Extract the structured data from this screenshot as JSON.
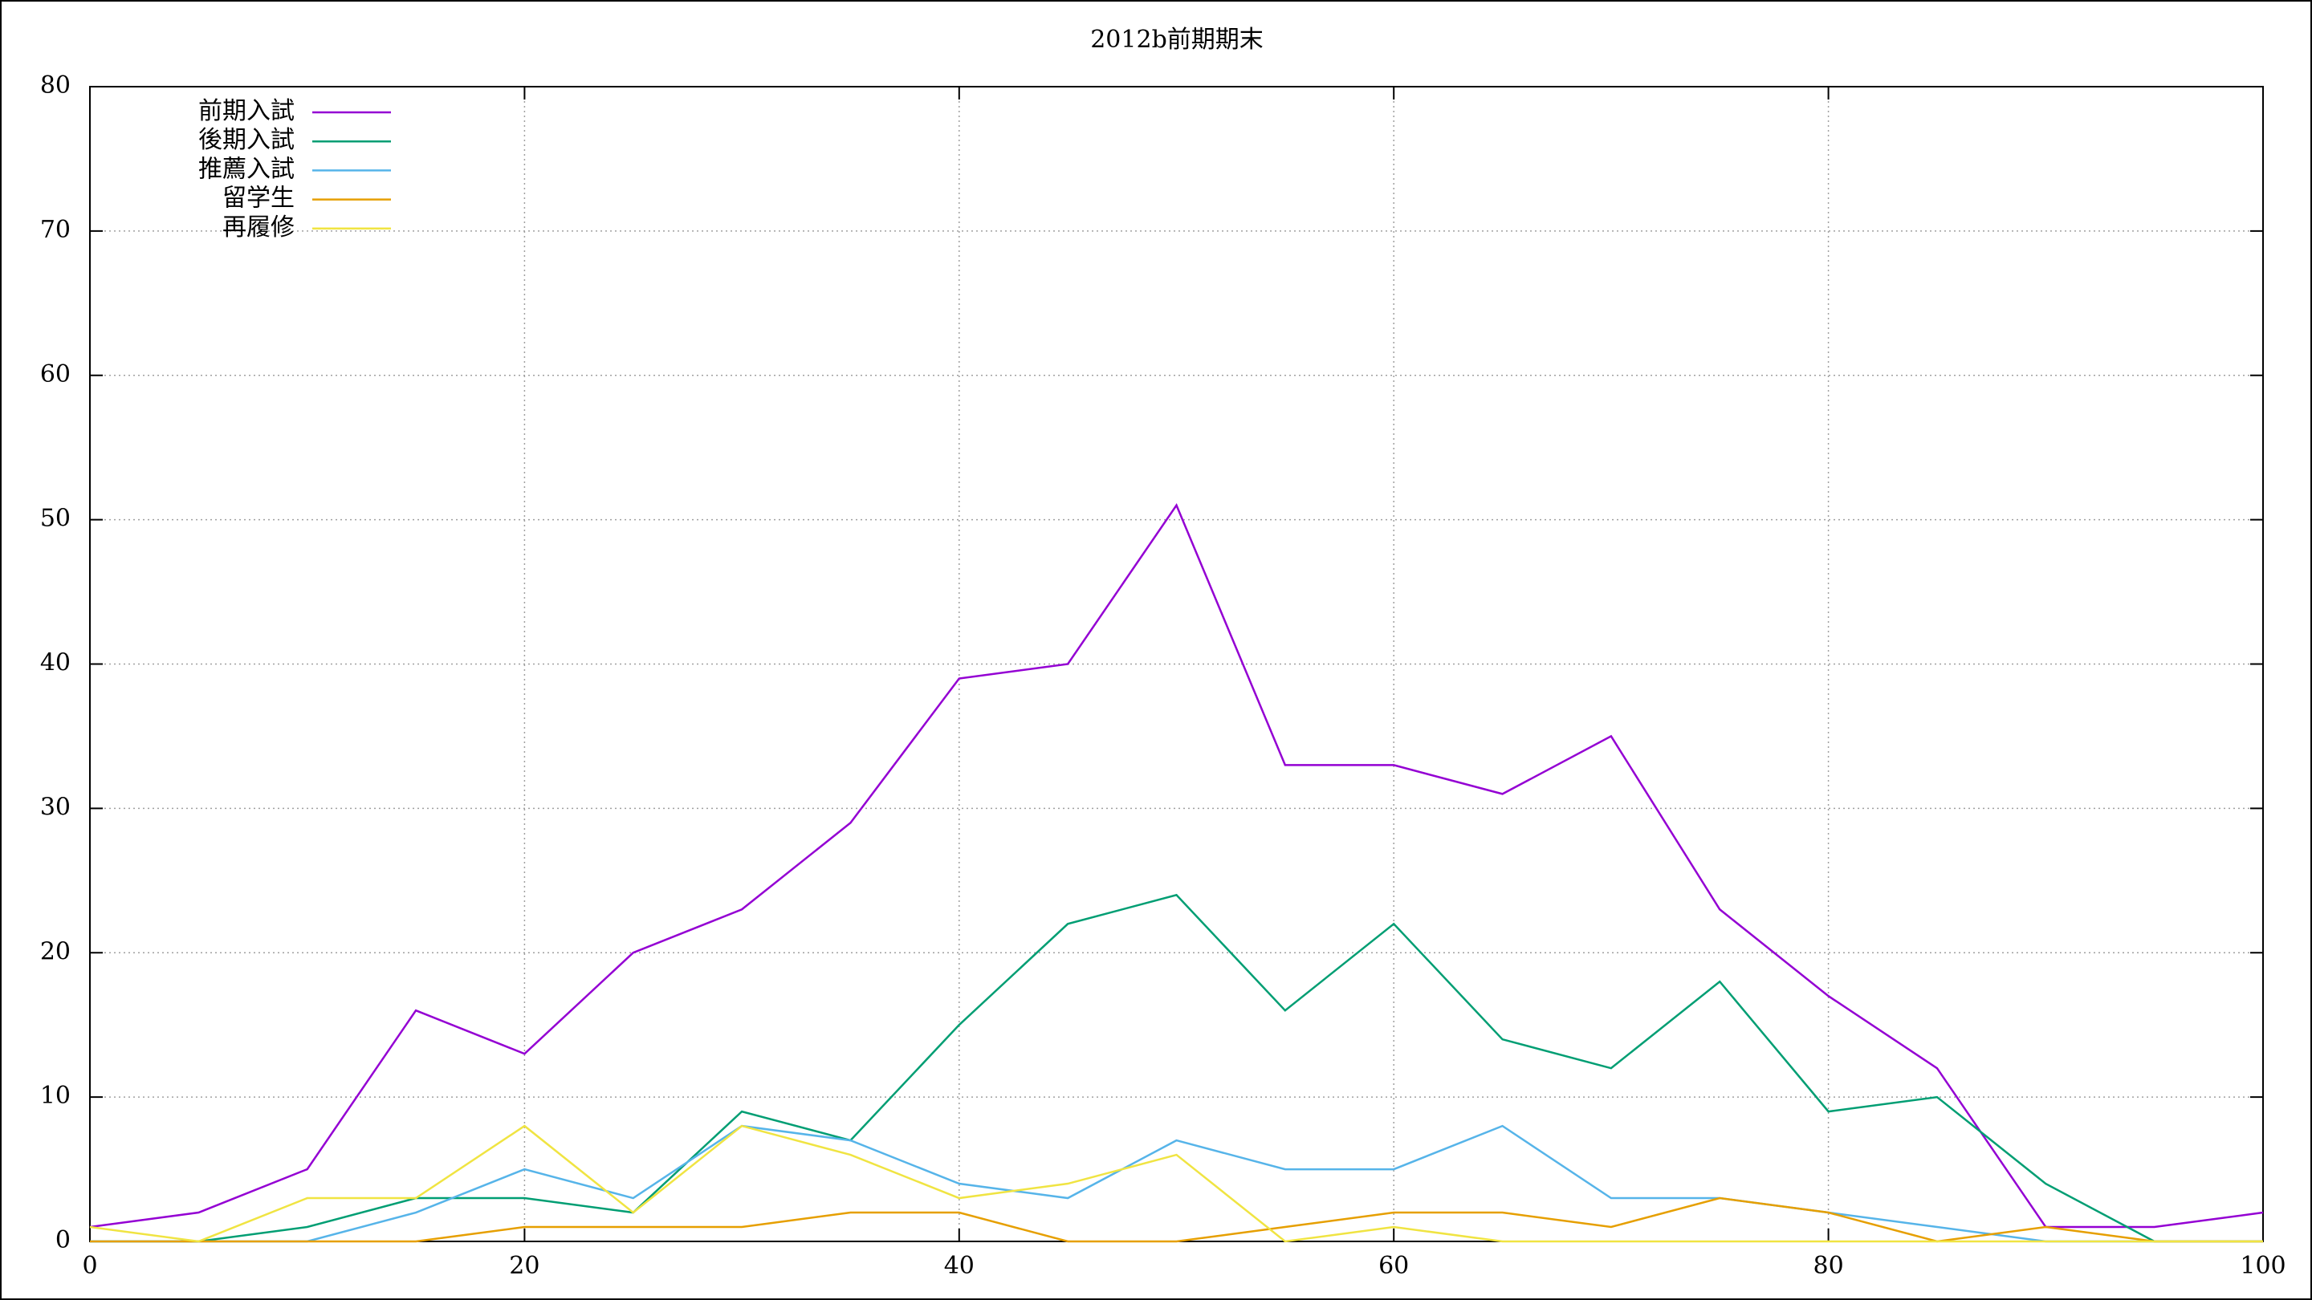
{
  "chart_data": {
    "type": "line",
    "title": "2012b前期期末",
    "x": [
      0,
      5,
      10,
      15,
      20,
      25,
      30,
      35,
      40,
      45,
      50,
      55,
      60,
      65,
      70,
      75,
      80,
      85,
      90,
      95,
      100
    ],
    "series": [
      {
        "name": "前期入試",
        "color": "#9400d3",
        "values": [
          1,
          2,
          5,
          16,
          13,
          20,
          23,
          29,
          39,
          40,
          51,
          33,
          33,
          31,
          35,
          23,
          17,
          12,
          1,
          1,
          2
        ]
      },
      {
        "name": "後期入試",
        "color": "#009e73",
        "values": [
          0,
          0,
          1,
          3,
          3,
          2,
          9,
          7,
          15,
          22,
          24,
          16,
          22,
          14,
          12,
          18,
          9,
          10,
          4,
          0,
          0
        ]
      },
      {
        "name": "推薦入試",
        "color": "#56b4e9",
        "values": [
          0,
          0,
          0,
          2,
          5,
          3,
          8,
          7,
          4,
          3,
          7,
          5,
          5,
          8,
          3,
          3,
          2,
          1,
          0,
          0,
          0
        ]
      },
      {
        "name": "留学生",
        "color": "#e69f00",
        "values": [
          0,
          0,
          0,
          0,
          1,
          1,
          1,
          2,
          2,
          0,
          0,
          1,
          2,
          2,
          1,
          3,
          2,
          0,
          1,
          0,
          0
        ]
      },
      {
        "name": "再履修",
        "color": "#f0e442",
        "values": [
          1,
          0,
          3,
          3,
          8,
          2,
          8,
          6,
          3,
          4,
          6,
          0,
          1,
          0,
          0,
          0,
          0,
          0,
          0,
          0,
          0
        ]
      }
    ],
    "xlim": [
      0,
      100
    ],
    "xticks": [
      0,
      20,
      40,
      60,
      80,
      100
    ],
    "ylim": [
      0,
      80
    ],
    "yticks": [
      0,
      10,
      20,
      30,
      40,
      50,
      60,
      70,
      80
    ],
    "grid": true,
    "legend": "top-left"
  }
}
